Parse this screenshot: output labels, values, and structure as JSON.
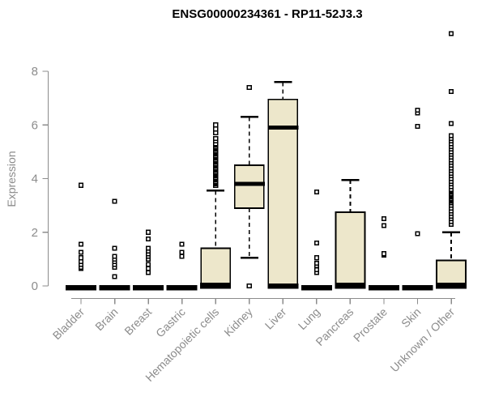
{
  "colors": {
    "box_fill": "#EDE7CB",
    "box_stroke": "#000000",
    "median": "#000000",
    "outlier_fill": "#FFFFFF",
    "axis": "#8C8C8C",
    "title": "#000000",
    "background": "#FFFFFF"
  },
  "chart_data": {
    "type": "boxplot",
    "title": "ENSG00000234361 - RP11-52J3.3",
    "xlabel": "",
    "ylabel": "Expression",
    "ylim": [
      0,
      8
    ],
    "yticks": [
      0,
      2,
      4,
      6,
      8
    ],
    "grid": false,
    "legend": false,
    "categories": [
      "Bladder",
      "Brain",
      "Breast",
      "Gastric",
      "Hematopoietic cells",
      "Kidney",
      "Liver",
      "Lung",
      "Pancreas",
      "Prostate",
      "Skin",
      "Unknown / Other"
    ],
    "series": [
      {
        "category": "Bladder",
        "whisker_low": 0,
        "q1": 0,
        "median": 0,
        "q3": 0,
        "whisker_high": 0,
        "outliers": [
          0.65,
          0.7,
          0.8,
          0.9,
          1.05,
          1.25,
          1.55,
          3.75
        ]
      },
      {
        "category": "Brain",
        "whisker_low": 0,
        "q1": 0,
        "median": 0,
        "q3": 0,
        "whisker_high": 0,
        "outliers": [
          0.35,
          0.7,
          0.8,
          0.9,
          1.0,
          1.1,
          1.4,
          3.15
        ]
      },
      {
        "category": "Breast",
        "whisker_low": 0,
        "q1": 0,
        "median": 0,
        "q3": 0,
        "whisker_high": 0,
        "outliers": [
          0.5,
          0.65,
          0.8,
          1.0,
          1.1,
          1.2,
          1.3,
          1.4,
          1.75,
          2.0
        ]
      },
      {
        "category": "Gastric",
        "whisker_low": 0,
        "q1": 0,
        "median": 0,
        "q3": 0,
        "whisker_high": 0,
        "outliers": [
          1.1,
          1.25,
          1.55
        ]
      },
      {
        "category": "Hematopoietic cells",
        "whisker_low": 0,
        "q1": 0,
        "median": 0.05,
        "q3": 1.4,
        "whisker_high": 3.55,
        "outliers": [
          3.75,
          3.8,
          3.85,
          3.9,
          3.95,
          4.0,
          4.05,
          4.1,
          4.15,
          4.2,
          4.25,
          4.3,
          4.35,
          4.4,
          4.45,
          4.5,
          4.55,
          4.6,
          4.65,
          4.7,
          4.75,
          4.8,
          4.85,
          4.9,
          4.95,
          5.0,
          5.05,
          5.1,
          5.15,
          5.2,
          5.25,
          5.3,
          5.4,
          5.5,
          5.7,
          5.85,
          6.0
        ]
      },
      {
        "category": "Kidney",
        "whisker_low": 1.05,
        "q1": 2.9,
        "median": 3.8,
        "q3": 4.5,
        "whisker_high": 6.3,
        "outliers": [
          0,
          7.4
        ]
      },
      {
        "category": "Liver",
        "whisker_low": 0,
        "q1": 0,
        "median": 5.9,
        "q3": 6.95,
        "whisker_high": 7.6,
        "outliers": []
      },
      {
        "category": "Lung",
        "whisker_low": 0,
        "q1": 0,
        "median": 0,
        "q3": 0,
        "whisker_high": 0,
        "outliers": [
          0.5,
          0.6,
          0.75,
          0.85,
          1.05,
          1.6,
          3.5
        ]
      },
      {
        "category": "Pancreas",
        "whisker_low": 0,
        "q1": 0,
        "median": 0.05,
        "q3": 2.75,
        "whisker_high": 3.95,
        "outliers": []
      },
      {
        "category": "Prostate",
        "whisker_low": 0,
        "q1": 0,
        "median": 0,
        "q3": 0,
        "whisker_high": 0,
        "outliers": [
          1.15,
          1.2,
          2.25,
          2.5
        ]
      },
      {
        "category": "Skin",
        "whisker_low": 0,
        "q1": 0,
        "median": 0,
        "q3": 0,
        "whisker_high": 0,
        "outliers": [
          1.95,
          5.95,
          6.45,
          6.55
        ]
      },
      {
        "category": "Unknown / Other",
        "whisker_low": 0,
        "q1": 0,
        "median": 0.05,
        "q3": 0.95,
        "whisker_high": 2.0,
        "outliers": [
          2.3,
          2.4,
          2.5,
          2.6,
          2.7,
          2.8,
          2.9,
          3.0,
          3.1,
          3.15,
          3.2,
          3.25,
          3.3,
          3.35,
          3.4,
          3.45,
          3.5,
          3.55,
          3.6,
          3.7,
          3.8,
          3.9,
          4.0,
          4.1,
          4.2,
          4.3,
          4.4,
          4.5,
          4.6,
          4.7,
          4.8,
          4.9,
          5.0,
          5.1,
          5.2,
          5.3,
          5.4,
          5.5,
          5.6,
          6.05,
          7.25,
          9.4
        ]
      }
    ]
  }
}
